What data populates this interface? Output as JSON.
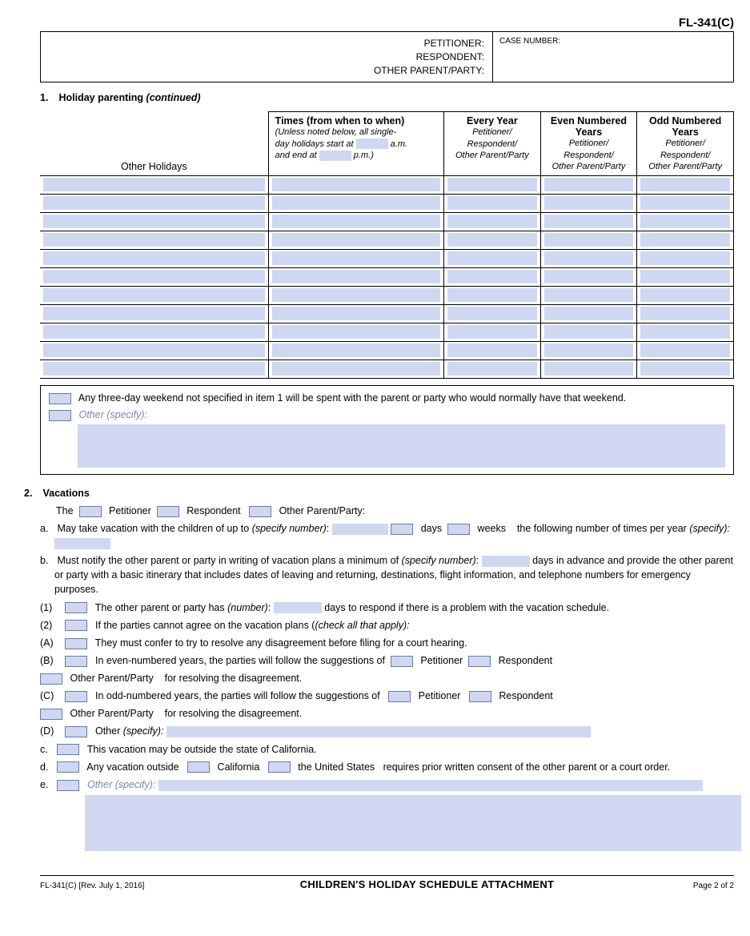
{
  "form_id": "FL-341(C)",
  "header": {
    "petitioner": "PETITIONER:",
    "respondent": "RESPONDENT:",
    "other_party": "OTHER PARENT/PARTY:",
    "case_number": "CASE NUMBER:"
  },
  "s1": {
    "num": "1.",
    "title": "Holiday parenting",
    "cont": "(continued)",
    "cols": {
      "other_holidays": "Other Holidays",
      "times_title": "Times (from when to when)",
      "times_sub1": "(Unless noted below, all single-",
      "times_sub2": "day holidays start at",
      "times_sub2b": "a.m.",
      "times_sub3": "and end at",
      "times_sub3b": "p.m.)",
      "every_title": "Every Year",
      "every_sub": "Petitioner/\nRespondent/\nOther Parent/Party",
      "even_title": "Even Numbered Years",
      "even_sub": "Petitioner/\nRespondent/\nOther Parent/Party",
      "odd_title": "Odd Numbered Years",
      "odd_sub": "Petitioner/\nRespondent/\nOther Parent/Party"
    },
    "row_count": 11,
    "opt1": "Any three-day weekend not specified in item 1 will be spent with the parent or party who would normally have that weekend.",
    "opt2": "Other (specify):"
  },
  "s2": {
    "num": "2.",
    "title": "Vacations",
    "the": "The",
    "pet": "Petitioner",
    "resp": "Respondent",
    "opp": "Other Parent/Party:",
    "a": {
      "lead": "a.",
      "t1": "May take vacation with the children of up to",
      "spec": "(specify number)",
      "days": "days",
      "weeks": "weeks",
      "t2": "the following number of",
      "t3": "times per year",
      "spec2": "(specify):"
    },
    "b": {
      "lead": "b.",
      "t1": "Must notify the other parent or party in writing of vacation plans a minimum of",
      "spec": "(specify number)",
      "t2": "days in advance",
      "t3": "and provide the other parent or party with a basic itinerary that includes dates of leaving and returning, destinations, flight",
      "t4": "information, and telephone numbers for emergency purposes."
    },
    "b1": {
      "lead": "(1)",
      "t1": "The other parent or party has",
      "num": "(number)",
      "t2": "days to respond if there is a problem with the vacation schedule."
    },
    "b2": {
      "lead": "(2)",
      "t1": "If the parties cannot agree on the vacation plans",
      "check": "(check all that apply):"
    },
    "b2a": {
      "lead": "(A)",
      "t": "They must confer to try to resolve any disagreement before filing for a court hearing."
    },
    "b2b": {
      "lead": "(B)",
      "t1": "In even-numbered years, the parties will follow the suggestions of",
      "pet": "Petitioner",
      "resp": "Respondent",
      "opp": "Other Parent/Party",
      "t2": "for resolving the disagreement."
    },
    "b2c": {
      "lead": "(C)",
      "t1": "In odd-numbered years, the parties will follow the suggestions of",
      "pet": "Petitioner",
      "resp": "Respondent",
      "opp": "Other Parent/Party",
      "t2": "for resolving the disagreement."
    },
    "b2d": {
      "lead": "(D)",
      "t": "Other",
      "spec": "(specify):"
    },
    "c": {
      "lead": "c.",
      "t": "This vacation may be outside the state of California."
    },
    "d": {
      "lead": "d.",
      "t1": "Any vacation outside",
      "cal": "California",
      "us": "the United States",
      "t2": "requires prior written consent of the other parent or",
      "t3": "a court order."
    },
    "e": {
      "lead": "e.",
      "t": "Other",
      "spec": "(specify):"
    }
  },
  "footer": {
    "left": "FL-341(C) [Rev. July 1, 2016]",
    "title": "CHILDREN'S HOLIDAY SCHEDULE ATTACHMENT",
    "right": "Page 2 of 2"
  },
  "colors": {
    "fill": "#cfd8f0",
    "muted": "#7a88b0"
  }
}
